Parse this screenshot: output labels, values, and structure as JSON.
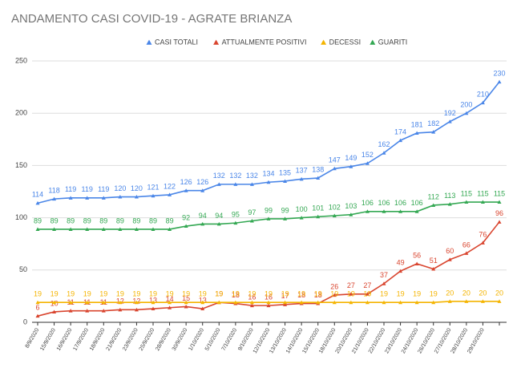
{
  "chart_data": {
    "type": "line",
    "title": "ANDAMENTO CASI COVID-19 - AGRATE BRIANZA",
    "categories": [
      "8/9/2020",
      "15/9/2020",
      "16/9/2020",
      "17/9/2020",
      "18/9/2020",
      "21/9/2020",
      "23/9/2020",
      "25/9/2020",
      "28/9/2020",
      "30/9/2020",
      "1/10/2020",
      "5/10/2020",
      "7/10/2020",
      "9/10/2020",
      "12/10/2020",
      "13/10/2020",
      "14/10/2020",
      "15/10/2020",
      "18/10/2020",
      "20/10/2020",
      "21/10/2020",
      "22/10/2020",
      "23/10/2020",
      "24/10/2020",
      "26/10/2020",
      "27/10/2020",
      "28/10/2020",
      "29/10/2020",
      null
    ],
    "series": [
      {
        "name": "CASI TOTALI",
        "color": "#4a86e8",
        "values": [
          114,
          118,
          119,
          119,
          119,
          120,
          120,
          121,
          122,
          126,
          126,
          132,
          132,
          132,
          134,
          135,
          137,
          138,
          147,
          149,
          152,
          162,
          174,
          181,
          182,
          192,
          200,
          210,
          230
        ]
      },
      {
        "name": "ATTUALMENTE POSITIVI",
        "color": "#d9452f",
        "values": [
          6,
          10,
          11,
          11,
          11,
          12,
          12,
          13,
          14,
          15,
          13,
          19,
          18,
          16,
          16,
          17,
          18,
          18,
          26,
          27,
          27,
          37,
          49,
          56,
          51,
          60,
          66,
          76,
          96
        ]
      },
      {
        "name": "DECESSI",
        "color": "#f4b400",
        "values": [
          19,
          19,
          19,
          19,
          19,
          19,
          19,
          19,
          19,
          19,
          19,
          19,
          19,
          19,
          19,
          19,
          19,
          19,
          19,
          19,
          19,
          19,
          19,
          19,
          19,
          20,
          20,
          20,
          20
        ]
      },
      {
        "name": "GUARITI",
        "color": "#34a853",
        "values": [
          89,
          89,
          89,
          89,
          89,
          89,
          89,
          89,
          89,
          92,
          94,
          94,
          95,
          97,
          99,
          99,
          100,
          101,
          102,
          103,
          106,
          106,
          106,
          106,
          112,
          113,
          115,
          115,
          115
        ]
      }
    ],
    "ylim": [
      0,
      250
    ],
    "yticks": [
      0,
      50,
      100,
      150,
      200,
      250
    ],
    "grid": true,
    "legend": "top"
  }
}
